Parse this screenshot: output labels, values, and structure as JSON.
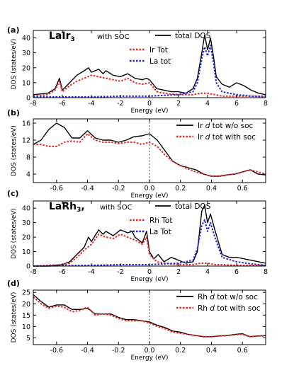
{
  "colors": {
    "total": "#000000",
    "partial": "#e8261f",
    "la": "#2222dd",
    "zero": "#888888"
  },
  "chart_data": [
    {
      "panel": "(a)",
      "type": "line",
      "material": "LaIr",
      "material_sub": "3",
      "material_suffix": "",
      "soc_label": "with SOC",
      "xlabel": "Energy (eV)",
      "ylabel": "DOS (states/eV)",
      "xlim": [
        -8,
        8
      ],
      "ylim": [
        0,
        45
      ],
      "xticks": [
        -8,
        -6,
        -4,
        -2,
        0,
        2,
        4,
        6,
        8
      ],
      "yticks": [
        0,
        10,
        20,
        30,
        40
      ],
      "zero_line": false,
      "series": [
        {
          "name": "total DOS",
          "style": "solid",
          "color_key": "total",
          "x": [
            -8,
            -7,
            -6.5,
            -6.2,
            -6,
            -5.5,
            -5,
            -4.5,
            -4.2,
            -4,
            -3.5,
            -3.2,
            -3,
            -2.5,
            -2,
            -1.5,
            -1,
            -0.5,
            -0.2,
            0,
            0.5,
            1,
            1.5,
            2,
            2.5,
            3,
            3.3,
            3.6,
            3.8,
            4,
            4.2,
            4.4,
            4.6,
            5,
            5.5,
            6,
            6.5,
            7,
            7.5,
            8
          ],
          "y": [
            2,
            3,
            6,
            13,
            5,
            10,
            15,
            18,
            20,
            17,
            19,
            16,
            18,
            15,
            14,
            16,
            13,
            12,
            13,
            12,
            6,
            5,
            4,
            4,
            3,
            6,
            13,
            30,
            42,
            32,
            40,
            28,
            14,
            9,
            7,
            10,
            8,
            5,
            3,
            2
          ]
        },
        {
          "name": "Ir Tot",
          "style": "dotted",
          "color_key": "partial",
          "x": [
            -8,
            -7,
            -6.5,
            -6.2,
            -6,
            -5.5,
            -5,
            -4.5,
            -4,
            -3.5,
            -3,
            -2.5,
            -2,
            -1.5,
            -1,
            -0.5,
            0,
            0.5,
            1,
            2,
            3,
            3.5,
            4,
            4.5,
            5,
            6,
            7,
            8
          ],
          "y": [
            1,
            2,
            5,
            11,
            4,
            8,
            11,
            13,
            15,
            14,
            13,
            12,
            11,
            13,
            10,
            9,
            10,
            4,
            3,
            2,
            2,
            3,
            3,
            2,
            1,
            1,
            1,
            1
          ]
        },
        {
          "name": "La tot",
          "style": "dotted",
          "color_key": "la",
          "x": [
            -8,
            -4,
            -2,
            0,
            1,
            2,
            3,
            3.3,
            3.6,
            3.8,
            4,
            4.2,
            4.4,
            4.6,
            5,
            6,
            7,
            8
          ],
          "y": [
            0.5,
            0.5,
            1,
            1,
            1.5,
            2,
            4,
            10,
            26,
            34,
            28,
            35,
            24,
            10,
            4,
            2,
            1,
            0.5
          ]
        }
      ]
    },
    {
      "panel": "(b)",
      "type": "line",
      "xlabel": "Energy (eV)",
      "ylabel": "DOS (states/eV)",
      "xlim": [
        -0.75,
        0.75
      ],
      "ylim": [
        2,
        17
      ],
      "xticks": [
        -0.6,
        -0.4,
        -0.2,
        0.0,
        0.2,
        0.4,
        0.6
      ],
      "xtick_labels": [
        "-0.6",
        "-0.4",
        "-0.2",
        "0.0",
        "0.2",
        "0.4",
        "0.6"
      ],
      "yticks": [
        4,
        8,
        12,
        16
      ],
      "zero_line": true,
      "series": [
        {
          "name_main": "Ir ",
          "name_d": "d",
          "name_tail": " tot w/o soc",
          "style": "solid",
          "color_key": "total",
          "x": [
            -0.75,
            -0.7,
            -0.65,
            -0.6,
            -0.55,
            -0.5,
            -0.45,
            -0.4,
            -0.35,
            -0.3,
            -0.25,
            -0.2,
            -0.15,
            -0.1,
            -0.05,
            0,
            0.05,
            0.1,
            0.15,
            0.2,
            0.25,
            0.3,
            0.35,
            0.4,
            0.45,
            0.5,
            0.55,
            0.6,
            0.65,
            0.7,
            0.75
          ],
          "y": [
            11,
            12,
            14.5,
            16,
            15,
            12.5,
            12.5,
            14.2,
            12.5,
            12,
            12,
            11.5,
            12,
            12.8,
            13,
            13.5,
            12,
            9.5,
            7,
            6,
            5.5,
            5,
            4,
            3.5,
            3.5,
            3.8,
            4,
            4.5,
            5,
            4,
            3.8
          ]
        },
        {
          "name_main": "Ir ",
          "name_d": "d",
          "name_tail": " tot with soc",
          "style": "dotted",
          "color_key": "partial",
          "x": [
            -0.75,
            -0.7,
            -0.65,
            -0.6,
            -0.55,
            -0.5,
            -0.45,
            -0.4,
            -0.35,
            -0.3,
            -0.25,
            -0.2,
            -0.15,
            -0.1,
            -0.05,
            0,
            0.05,
            0.1,
            0.15,
            0.2,
            0.25,
            0.3,
            0.35,
            0.4,
            0.45,
            0.5,
            0.55,
            0.6,
            0.65,
            0.7,
            0.75
          ],
          "y": [
            11,
            11,
            10.5,
            10.5,
            11.5,
            11.8,
            11.5,
            13.5,
            12,
            11.5,
            11.5,
            11.2,
            11.5,
            11.5,
            11,
            11.5,
            10.5,
            8.5,
            7,
            6,
            5.2,
            4.5,
            4,
            3.5,
            3.5,
            3.8,
            4,
            4.5,
            5,
            4.5,
            4
          ]
        }
      ]
    },
    {
      "panel": "(c)",
      "type": "line",
      "material": "LaRh",
      "material_sub": "3",
      "material_suffix": ",",
      "soc_label": "with SOC",
      "xlabel": "Energy (eV)",
      "ylabel": "DOS (states/eV)",
      "xlim": [
        -8,
        8
      ],
      "ylim": [
        0,
        45
      ],
      "xticks": [
        -8,
        -6,
        -4,
        -2,
        0,
        2,
        4,
        6,
        8
      ],
      "yticks": [
        0,
        10,
        20,
        30,
        40
      ],
      "zero_line": false,
      "series": [
        {
          "name": "total DOS",
          "style": "solid",
          "color_key": "total",
          "x": [
            -8,
            -7,
            -6,
            -5.5,
            -5,
            -4.5,
            -4.2,
            -4,
            -3.5,
            -3.2,
            -3,
            -2.5,
            -2,
            -1.5,
            -1.2,
            -1,
            -0.5,
            -0.2,
            0,
            0.3,
            0.6,
            1,
            1.5,
            2,
            2.5,
            3,
            3.3,
            3.6,
            3.8,
            4,
            4.2,
            4.5,
            5,
            5.5,
            6,
            7,
            8
          ],
          "y": [
            0,
            0,
            1,
            3,
            8,
            13,
            20,
            17,
            25,
            22,
            24,
            21,
            25,
            23,
            24,
            20,
            16,
            24,
            10,
            5,
            8,
            3,
            6,
            4,
            2,
            3,
            10,
            38,
            42,
            30,
            36,
            25,
            8,
            6,
            6,
            4,
            2
          ]
        },
        {
          "name": "Rh Tot",
          "style": "dotted",
          "color_key": "partial",
          "x": [
            -8,
            -6,
            -5.5,
            -5,
            -4.5,
            -4,
            -3.5,
            -3,
            -2.5,
            -2,
            -1.5,
            -1,
            -0.5,
            -0.2,
            0,
            0.5,
            1,
            2,
            3,
            3.5,
            4,
            4.5,
            5,
            6,
            7,
            8
          ],
          "y": [
            0,
            1,
            2,
            6,
            11,
            15,
            22,
            20,
            19,
            22,
            20,
            18,
            15,
            20,
            8,
            3,
            2,
            1,
            1,
            2,
            2,
            1,
            1,
            0.5,
            0.5,
            0.5
          ]
        },
        {
          "name": "La Tot",
          "style": "dotted",
          "color_key": "la",
          "x": [
            -8,
            -4,
            -2,
            0,
            1,
            2,
            3,
            3.3,
            3.6,
            3.8,
            4,
            4.2,
            4.5,
            5,
            6,
            7,
            8
          ],
          "y": [
            0,
            0.5,
            1,
            1,
            1.5,
            2,
            4,
            12,
            28,
            32,
            24,
            30,
            20,
            6,
            3,
            1.5,
            0.5
          ]
        }
      ]
    },
    {
      "panel": "(d)",
      "type": "line",
      "xlabel": "Energy (eV)",
      "ylabel": "DOS (states/eV)",
      "xlim": [
        -0.75,
        0.75
      ],
      "ylim": [
        2,
        26
      ],
      "xticks": [
        -0.6,
        -0.4,
        -0.2,
        0.0,
        0.2,
        0.4,
        0.6
      ],
      "xtick_labels": [
        "-0.6",
        "-0.4",
        "-0.2",
        "0.0",
        "0.2",
        "0.4",
        "0.6"
      ],
      "yticks": [
        5,
        10,
        15,
        20,
        25
      ],
      "zero_line": true,
      "series": [
        {
          "name_main": "Rh ",
          "name_d": "d",
          "name_tail": " tot w/o soc",
          "style": "solid",
          "color_key": "total",
          "x": [
            -0.75,
            -0.7,
            -0.65,
            -0.6,
            -0.55,
            -0.5,
            -0.45,
            -0.4,
            -0.35,
            -0.3,
            -0.25,
            -0.2,
            -0.15,
            -0.1,
            -0.05,
            0,
            0.05,
            0.1,
            0.15,
            0.2,
            0.25,
            0.3,
            0.35,
            0.4,
            0.45,
            0.5,
            0.55,
            0.6,
            0.65,
            0.7,
            0.75
          ],
          "y": [
            24,
            21,
            18.5,
            19.5,
            19.5,
            17.5,
            17.5,
            18,
            15.5,
            15.5,
            15.5,
            14,
            13,
            13,
            12.5,
            12,
            10.5,
            9.5,
            8,
            7.5,
            6.5,
            6,
            5.5,
            5.5,
            5.8,
            6,
            6.5,
            6.8,
            5.5,
            5.8,
            6
          ]
        },
        {
          "name_main": "Rh ",
          "name_d": "d",
          "name_tail": " tot with soc",
          "style": "dotted",
          "color_key": "partial",
          "x": [
            -0.75,
            -0.7,
            -0.65,
            -0.6,
            -0.55,
            -0.5,
            -0.45,
            -0.4,
            -0.35,
            -0.3,
            -0.25,
            -0.2,
            -0.15,
            -0.1,
            -0.05,
            0,
            0.05,
            0.1,
            0.15,
            0.2,
            0.25,
            0.3,
            0.35,
            0.4,
            0.45,
            0.5,
            0.55,
            0.6,
            0.65,
            0.7,
            0.75
          ],
          "y": [
            23,
            20,
            18,
            19,
            18.5,
            16.5,
            17,
            18.5,
            15,
            15.5,
            15,
            13.5,
            12.5,
            12.5,
            12.5,
            11.5,
            10,
            9,
            7.5,
            7,
            6.5,
            6,
            5.5,
            5.5,
            5.8,
            6,
            6.3,
            6.5,
            5.5,
            5.8,
            5.8
          ]
        }
      ]
    }
  ]
}
